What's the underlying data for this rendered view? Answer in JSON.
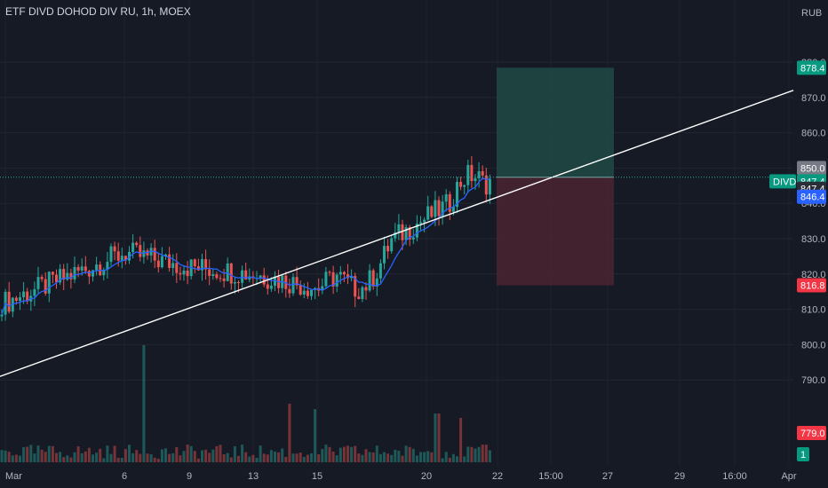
{
  "title": "ETF DIVD DOHOD DIV RU, 1h, MOEX",
  "colors": {
    "background": "#161a25",
    "up": "#26a69a",
    "down": "#ef5350",
    "ma": "#2962ff",
    "trendline": "#ffffff",
    "target_zone": "#1f4a44",
    "stop_zone": "#4a2530",
    "tag_green": "#089981",
    "tag_red": "#f23645",
    "tag_gray": "#787b86",
    "tag_blue": "#2962ff"
  },
  "chart_data": {
    "type": "candlestick",
    "y_axis": {
      "unit": "RUB",
      "ticks": [
        790,
        800,
        810,
        820,
        830,
        840,
        850,
        860,
        870,
        880
      ],
      "range": [
        779,
        892
      ]
    },
    "x_axis": {
      "labels": [
        "Mar",
        "6",
        "9",
        "13",
        "15",
        "20",
        "22",
        "15:00",
        "27",
        "29",
        "16:00",
        "Apr"
      ]
    },
    "key_points": [
      {
        "x": "Mar",
        "price": 812
      },
      {
        "x": "6",
        "price": 826
      },
      {
        "x": "9",
        "price": 822
      },
      {
        "x": "13",
        "price": 820
      },
      {
        "x": "15",
        "price": 816
      },
      {
        "x": "20",
        "price": 836
      },
      {
        "x": "22",
        "price": 847
      }
    ],
    "swing_low": 804,
    "swing_high": 856,
    "moving_average": "blue line tracking price",
    "trendline": {
      "from_price": 791,
      "to_price": 872
    },
    "position": {
      "entry": 847.4,
      "target": 878.4,
      "stop": 816.8
    },
    "price_tags": {
      "target": "878.4",
      "high": "850.0",
      "symbol": "DIVD",
      "last": "847.4",
      "entry": "847.4",
      "ma": "846.4",
      "stop": "816.8",
      "volume_max": "779.0",
      "volume_count": "1"
    }
  }
}
